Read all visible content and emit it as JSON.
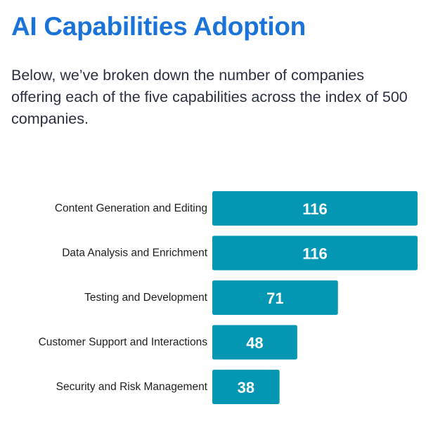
{
  "header": {
    "title": "AI Capabilities Adoption",
    "description": "Below, we’ve broken down the number of companies offering each of the five capabilities across the index of 500 companies."
  },
  "colors": {
    "title": "#1a73d9",
    "bar": "#0397b3",
    "value_text": "#ffffff",
    "category_text": "#1e1e1e"
  },
  "chart_data": {
    "type": "bar",
    "orientation": "horizontal",
    "categories": [
      "Content Generation and Editing",
      "Data Analysis and Enrichment",
      "Testing and Development",
      "Customer Support and Interactions",
      "Security and Risk Management"
    ],
    "values": [
      116,
      116,
      71,
      48,
      38
    ],
    "xlim": [
      0,
      116
    ],
    "grid": false,
    "legend": "none",
    "data_labels": "inside-bar"
  }
}
